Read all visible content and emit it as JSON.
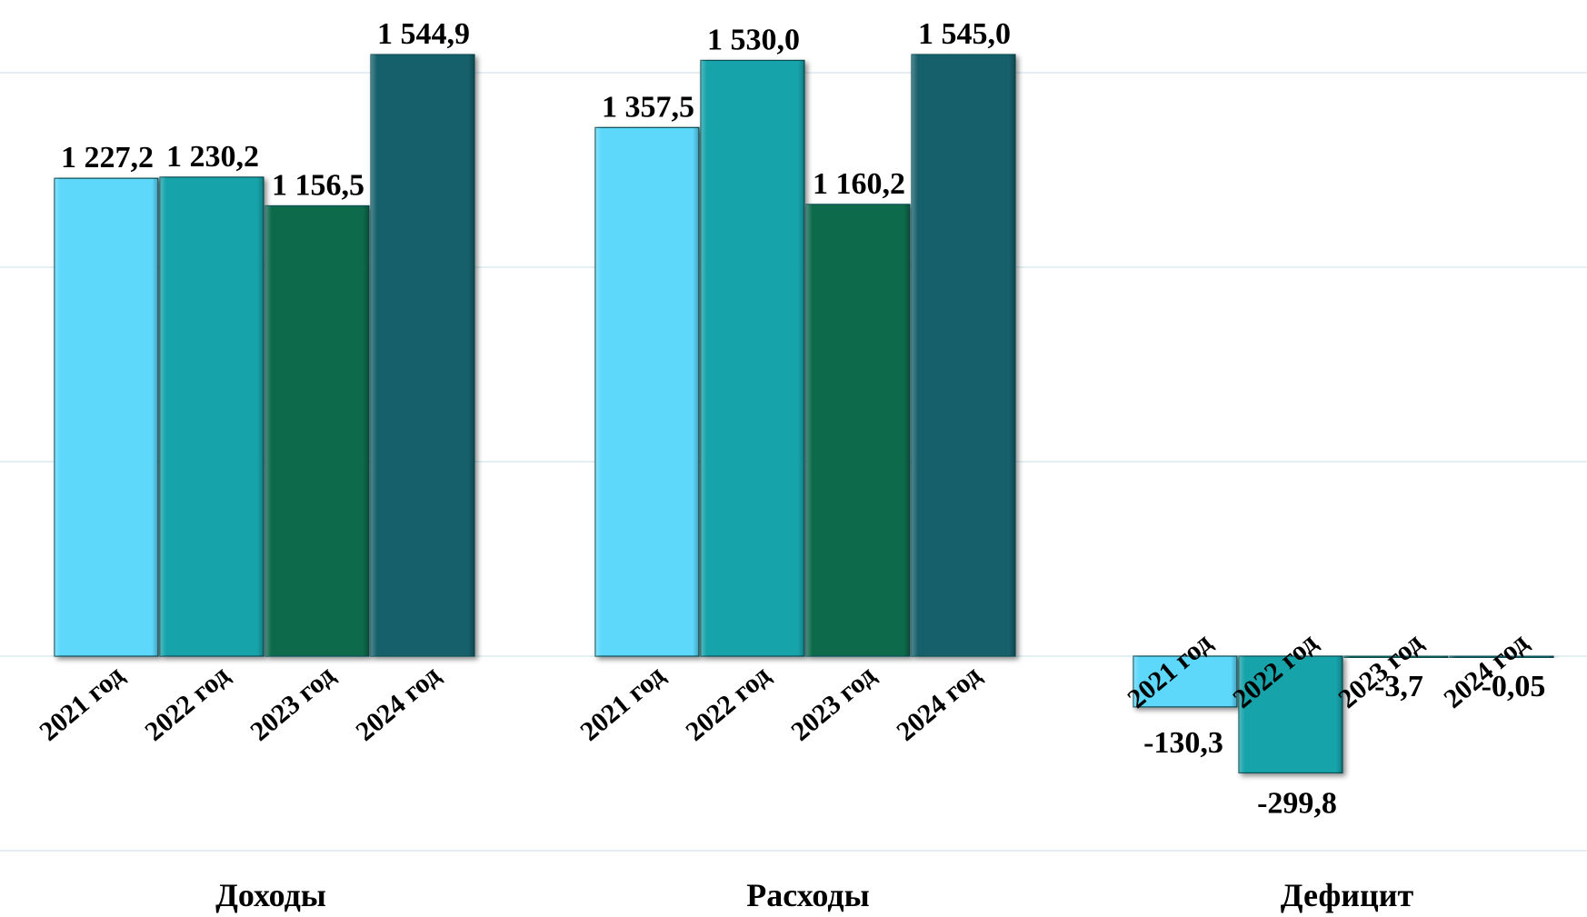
{
  "chart_data": {
    "type": "bar",
    "grid": true,
    "groups": [
      {
        "label": "Доходы",
        "categories": [
          "2021 год",
          "2022 год",
          "2023 год",
          "2024 год"
        ],
        "values": [
          1227.2,
          1230.2,
          1156.5,
          1544.9
        ],
        "value_labels": [
          "1 227,2",
          "1 230,2",
          "1 156,5",
          "1 544,9"
        ]
      },
      {
        "label": "Расходы",
        "categories": [
          "2021 год",
          "2022 год",
          "2023 год",
          "2024 год"
        ],
        "values": [
          1357.5,
          1530.0,
          1160.2,
          1545.0
        ],
        "value_labels": [
          "1 357,5",
          "1 530,0",
          "1 160,2",
          "1 545,0"
        ]
      },
      {
        "label": "Дефицит",
        "categories": [
          "2021 год",
          "2022 год",
          "2023 год",
          "2024 год"
        ],
        "values": [
          -130.3,
          -299.8,
          -3.7,
          -0.05
        ],
        "value_labels": [
          "-130,3",
          "-299,8",
          "-3,7",
          "-0,05"
        ]
      }
    ],
    "colors": [
      "#5dd8fb",
      "#12a3aa",
      "#116b4c",
      "#17616c"
    ],
    "grid_color": "#d8ecf2"
  }
}
